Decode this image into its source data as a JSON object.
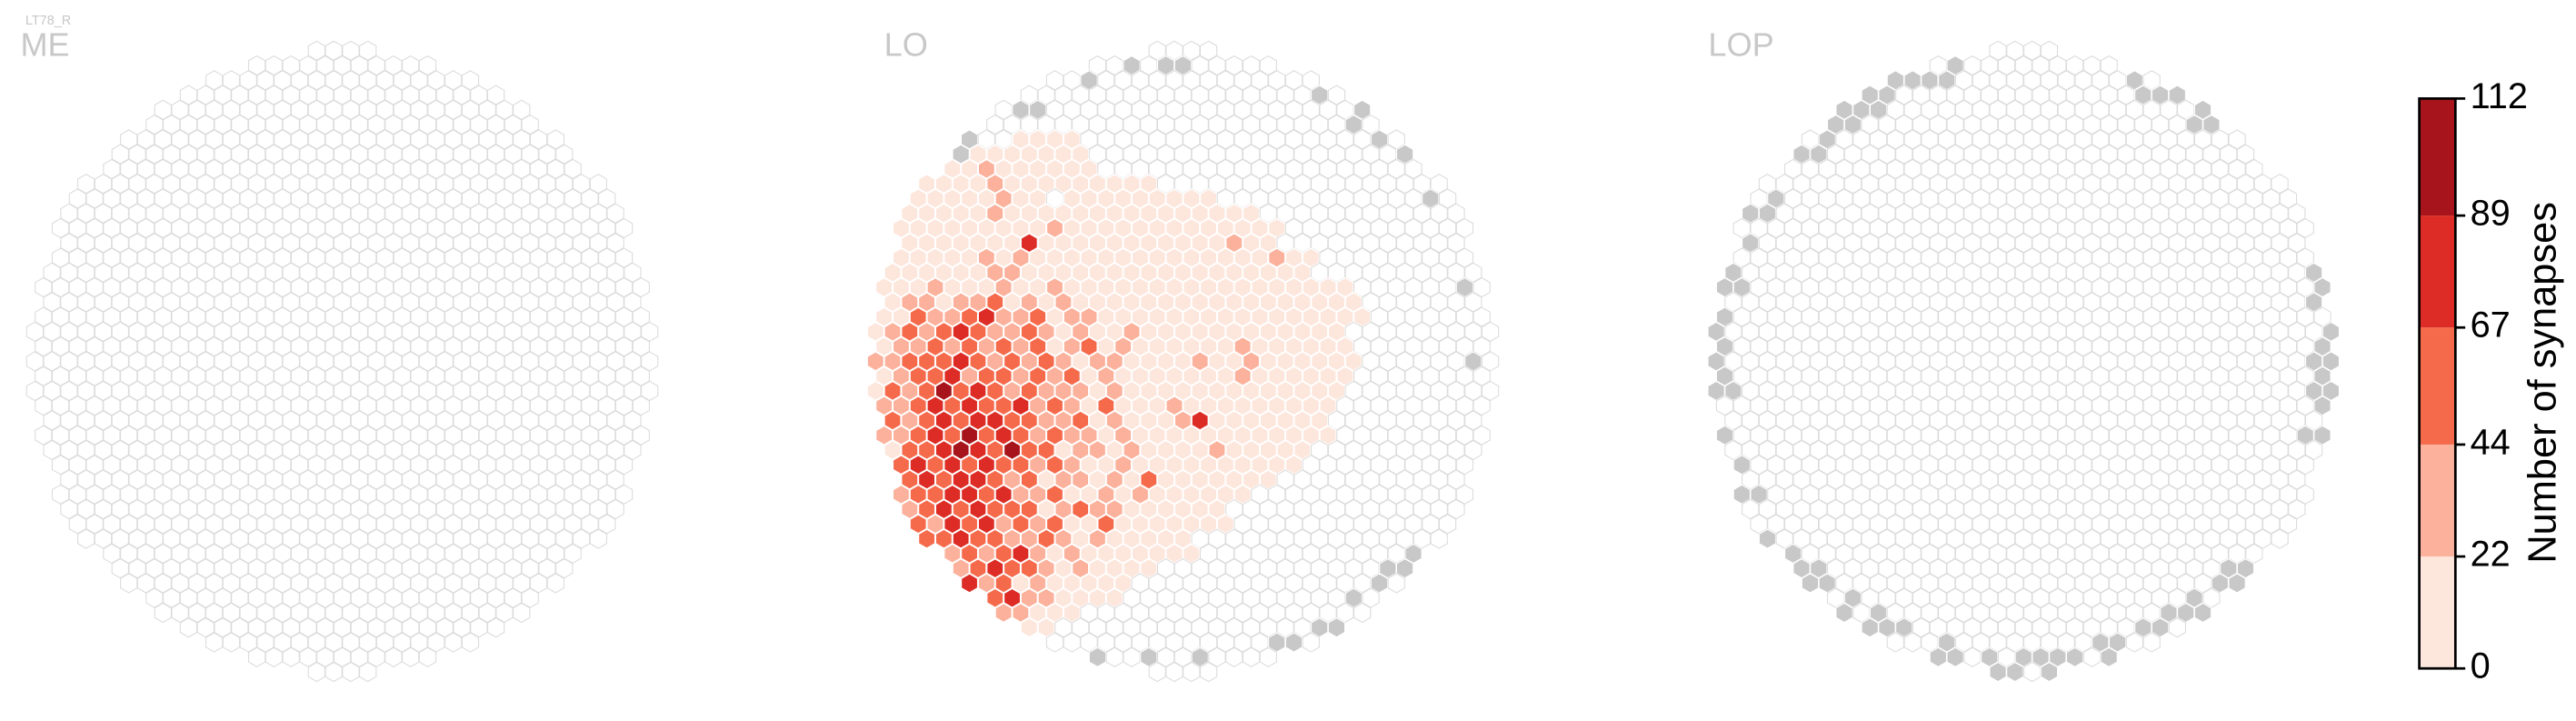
{
  "figure_title": "LT78_R",
  "chart_data": [
    {
      "type": "hexmap",
      "title": "ME"
    },
    {
      "type": "hexmap",
      "title": "LO",
      "values": [
        [],
        [],
        [],
        [],
        [],
        [],
        [
          null,
          null,
          null,
          null,
          null,
          null,
          null,
          null,
          8,
          8,
          8,
          8
        ],
        [
          null,
          null,
          null,
          null,
          null,
          null,
          8,
          8,
          8,
          8,
          8,
          8,
          8
        ],
        [
          null,
          null,
          null,
          8,
          8,
          8,
          30,
          8,
          8,
          8,
          8,
          8,
          8
        ],
        [
          null,
          null,
          null,
          8,
          8,
          8,
          8,
          30,
          8,
          8,
          8,
          8,
          8,
          8,
          8,
          8,
          8
        ],
        [
          null,
          null,
          8,
          8,
          8,
          8,
          8,
          30,
          8,
          8,
          null,
          8,
          8,
          8,
          8,
          8,
          8,
          8,
          8,
          8
        ],
        [
          null,
          null,
          8,
          8,
          8,
          8,
          8,
          30,
          8,
          8,
          8,
          8,
          8,
          8,
          8,
          8,
          8,
          8,
          8,
          8,
          8,
          8,
          8
        ],
        [
          null,
          8,
          8,
          8,
          8,
          8,
          8,
          8,
          8,
          8,
          30,
          8,
          8,
          8,
          8,
          8,
          8,
          8,
          8,
          8,
          8,
          8,
          8,
          8
        ],
        [
          null,
          8,
          8,
          8,
          8,
          8,
          8,
          8,
          8,
          78,
          8,
          8,
          8,
          8,
          8,
          8,
          8,
          8,
          8,
          8,
          8,
          30,
          8,
          8
        ],
        [
          null,
          8,
          8,
          8,
          8,
          8,
          30,
          8,
          30,
          8,
          8,
          8,
          8,
          8,
          8,
          8,
          8,
          8,
          8,
          8,
          8,
          8,
          8,
          30,
          8,
          8
        ],
        [
          8,
          8,
          8,
          8,
          8,
          8,
          8,
          30,
          30,
          8,
          8,
          8,
          8,
          8,
          8,
          8,
          8,
          8,
          8,
          8,
          8,
          8,
          8,
          8,
          8,
          8
        ],
        [
          8,
          8,
          8,
          30,
          8,
          8,
          8,
          30,
          8,
          8,
          30,
          8,
          8,
          8,
          8,
          8,
          8,
          8,
          8,
          8,
          8,
          8,
          8,
          8,
          8,
          8,
          8,
          8
        ],
        [
          8,
          8,
          30,
          30,
          8,
          30,
          30,
          55,
          8,
          30,
          8,
          30,
          8,
          8,
          8,
          8,
          8,
          8,
          8,
          8,
          8,
          8,
          8,
          8,
          8,
          8,
          8,
          8,
          8
        ],
        [
          8,
          8,
          55,
          30,
          30,
          55,
          78,
          30,
          30,
          55,
          8,
          30,
          30,
          8,
          8,
          8,
          8,
          8,
          8,
          8,
          8,
          8,
          8,
          8,
          8,
          8,
          8,
          8,
          8
        ],
        [
          8,
          30,
          55,
          30,
          55,
          78,
          55,
          30,
          30,
          55,
          30,
          8,
          30,
          8,
          8,
          30,
          8,
          8,
          8,
          8,
          8,
          8,
          8,
          8,
          8,
          8,
          8,
          8
        ],
        [
          8,
          30,
          30,
          55,
          30,
          55,
          30,
          55,
          30,
          55,
          8,
          30,
          55,
          8,
          30,
          8,
          8,
          8,
          8,
          8,
          8,
          30,
          8,
          8,
          8,
          8,
          8,
          8
        ],
        [
          30,
          30,
          55,
          55,
          55,
          78,
          55,
          30,
          55,
          30,
          55,
          30,
          8,
          30,
          30,
          8,
          8,
          8,
          8,
          30,
          8,
          8,
          30,
          8,
          8,
          8,
          8,
          8,
          8
        ],
        [
          8,
          30,
          55,
          55,
          78,
          30,
          55,
          55,
          30,
          55,
          30,
          55,
          8,
          30,
          8,
          8,
          8,
          8,
          8,
          8,
          8,
          30,
          8,
          8,
          8,
          8,
          8,
          8
        ],
        [
          8,
          55,
          30,
          55,
          100,
          55,
          78,
          55,
          30,
          55,
          30,
          30,
          30,
          8,
          30,
          8,
          8,
          8,
          8,
          8,
          8,
          8,
          8,
          8,
          8,
          8,
          8,
          8
        ],
        [
          30,
          30,
          55,
          78,
          55,
          78,
          55,
          55,
          78,
          30,
          55,
          30,
          8,
          55,
          8,
          8,
          8,
          30,
          8,
          8,
          8,
          8,
          8,
          8,
          8,
          8,
          8
        ],
        [
          8,
          55,
          30,
          55,
          78,
          55,
          78,
          78,
          55,
          55,
          30,
          30,
          55,
          8,
          30,
          8,
          8,
          8,
          30,
          78,
          8,
          8,
          8,
          8,
          8,
          8,
          8
        ],
        [
          30,
          30,
          55,
          78,
          55,
          100,
          55,
          78,
          55,
          30,
          55,
          30,
          30,
          8,
          30,
          8,
          8,
          8,
          8,
          8,
          8,
          8,
          8,
          8,
          8,
          8,
          8
        ],
        [
          30,
          8,
          55,
          55,
          78,
          100,
          78,
          55,
          100,
          55,
          55,
          8,
          30,
          30,
          8,
          30,
          8,
          8,
          8,
          8,
          30,
          8,
          8,
          8,
          8,
          8
        ],
        [
          100,
          55,
          78,
          55,
          78,
          55,
          78,
          55,
          55,
          30,
          55,
          30,
          8,
          8,
          30,
          8,
          8,
          8,
          8,
          8,
          8,
          8,
          8,
          8,
          8
        ],
        [
          8,
          55,
          55,
          78,
          55,
          78,
          78,
          55,
          30,
          55,
          8,
          30,
          30,
          8,
          30,
          8,
          55,
          8,
          8,
          8,
          8,
          8,
          8,
          8
        ],
        [
          null,
          30,
          55,
          55,
          78,
          78,
          55,
          78,
          30,
          30,
          55,
          8,
          8,
          30,
          8,
          30,
          8,
          8,
          8,
          8,
          8,
          8
        ],
        [
          null,
          30,
          30,
          55,
          78,
          55,
          78,
          55,
          55,
          55,
          8,
          30,
          55,
          30,
          30,
          8,
          8,
          8,
          8,
          8,
          8
        ],
        [
          null,
          8,
          55,
          30,
          78,
          55,
          78,
          30,
          55,
          30,
          55,
          8,
          8,
          55,
          8,
          8,
          8,
          8,
          8,
          8,
          8
        ],
        [
          null,
          null,
          30,
          55,
          55,
          78,
          55,
          55,
          30,
          30,
          55,
          30,
          8,
          30,
          8,
          8,
          8,
          8,
          8
        ],
        [
          null,
          null,
          8,
          55,
          30,
          55,
          30,
          55,
          78,
          30,
          8,
          30,
          8,
          8,
          8,
          8,
          8,
          8,
          8
        ],
        [
          null,
          null,
          null,
          30,
          55,
          30,
          55,
          78,
          55,
          55,
          30,
          8,
          30,
          8,
          8,
          8,
          8
        ],
        [
          null,
          null,
          null,
          30,
          8,
          78,
          30,
          55,
          8,
          30,
          8,
          8,
          8,
          8,
          8
        ],
        [
          null,
          null,
          null,
          null,
          8,
          55,
          30,
          55,
          78,
          30,
          30,
          8,
          8,
          8,
          8
        ],
        [
          null,
          null,
          null,
          null,
          null,
          78,
          55,
          30,
          30,
          8,
          8,
          8
        ],
        [
          null,
          null,
          null,
          null,
          null,
          null,
          55,
          55,
          30,
          8,
          8
        ],
        [
          null,
          null,
          null,
          null,
          null,
          null,
          null,
          55,
          8
        ],
        [],
        []
      ]
    },
    {
      "type": "hexmap",
      "title": "LOP"
    }
  ],
  "colorbar": {
    "label": "Number of synapses",
    "ticks": [
      0,
      22,
      44,
      67,
      89,
      112
    ],
    "colors": [
      "#fde6dc",
      "#fbb19b",
      "#f66a4c",
      "#dc2c25",
      "#a7141b"
    ]
  }
}
